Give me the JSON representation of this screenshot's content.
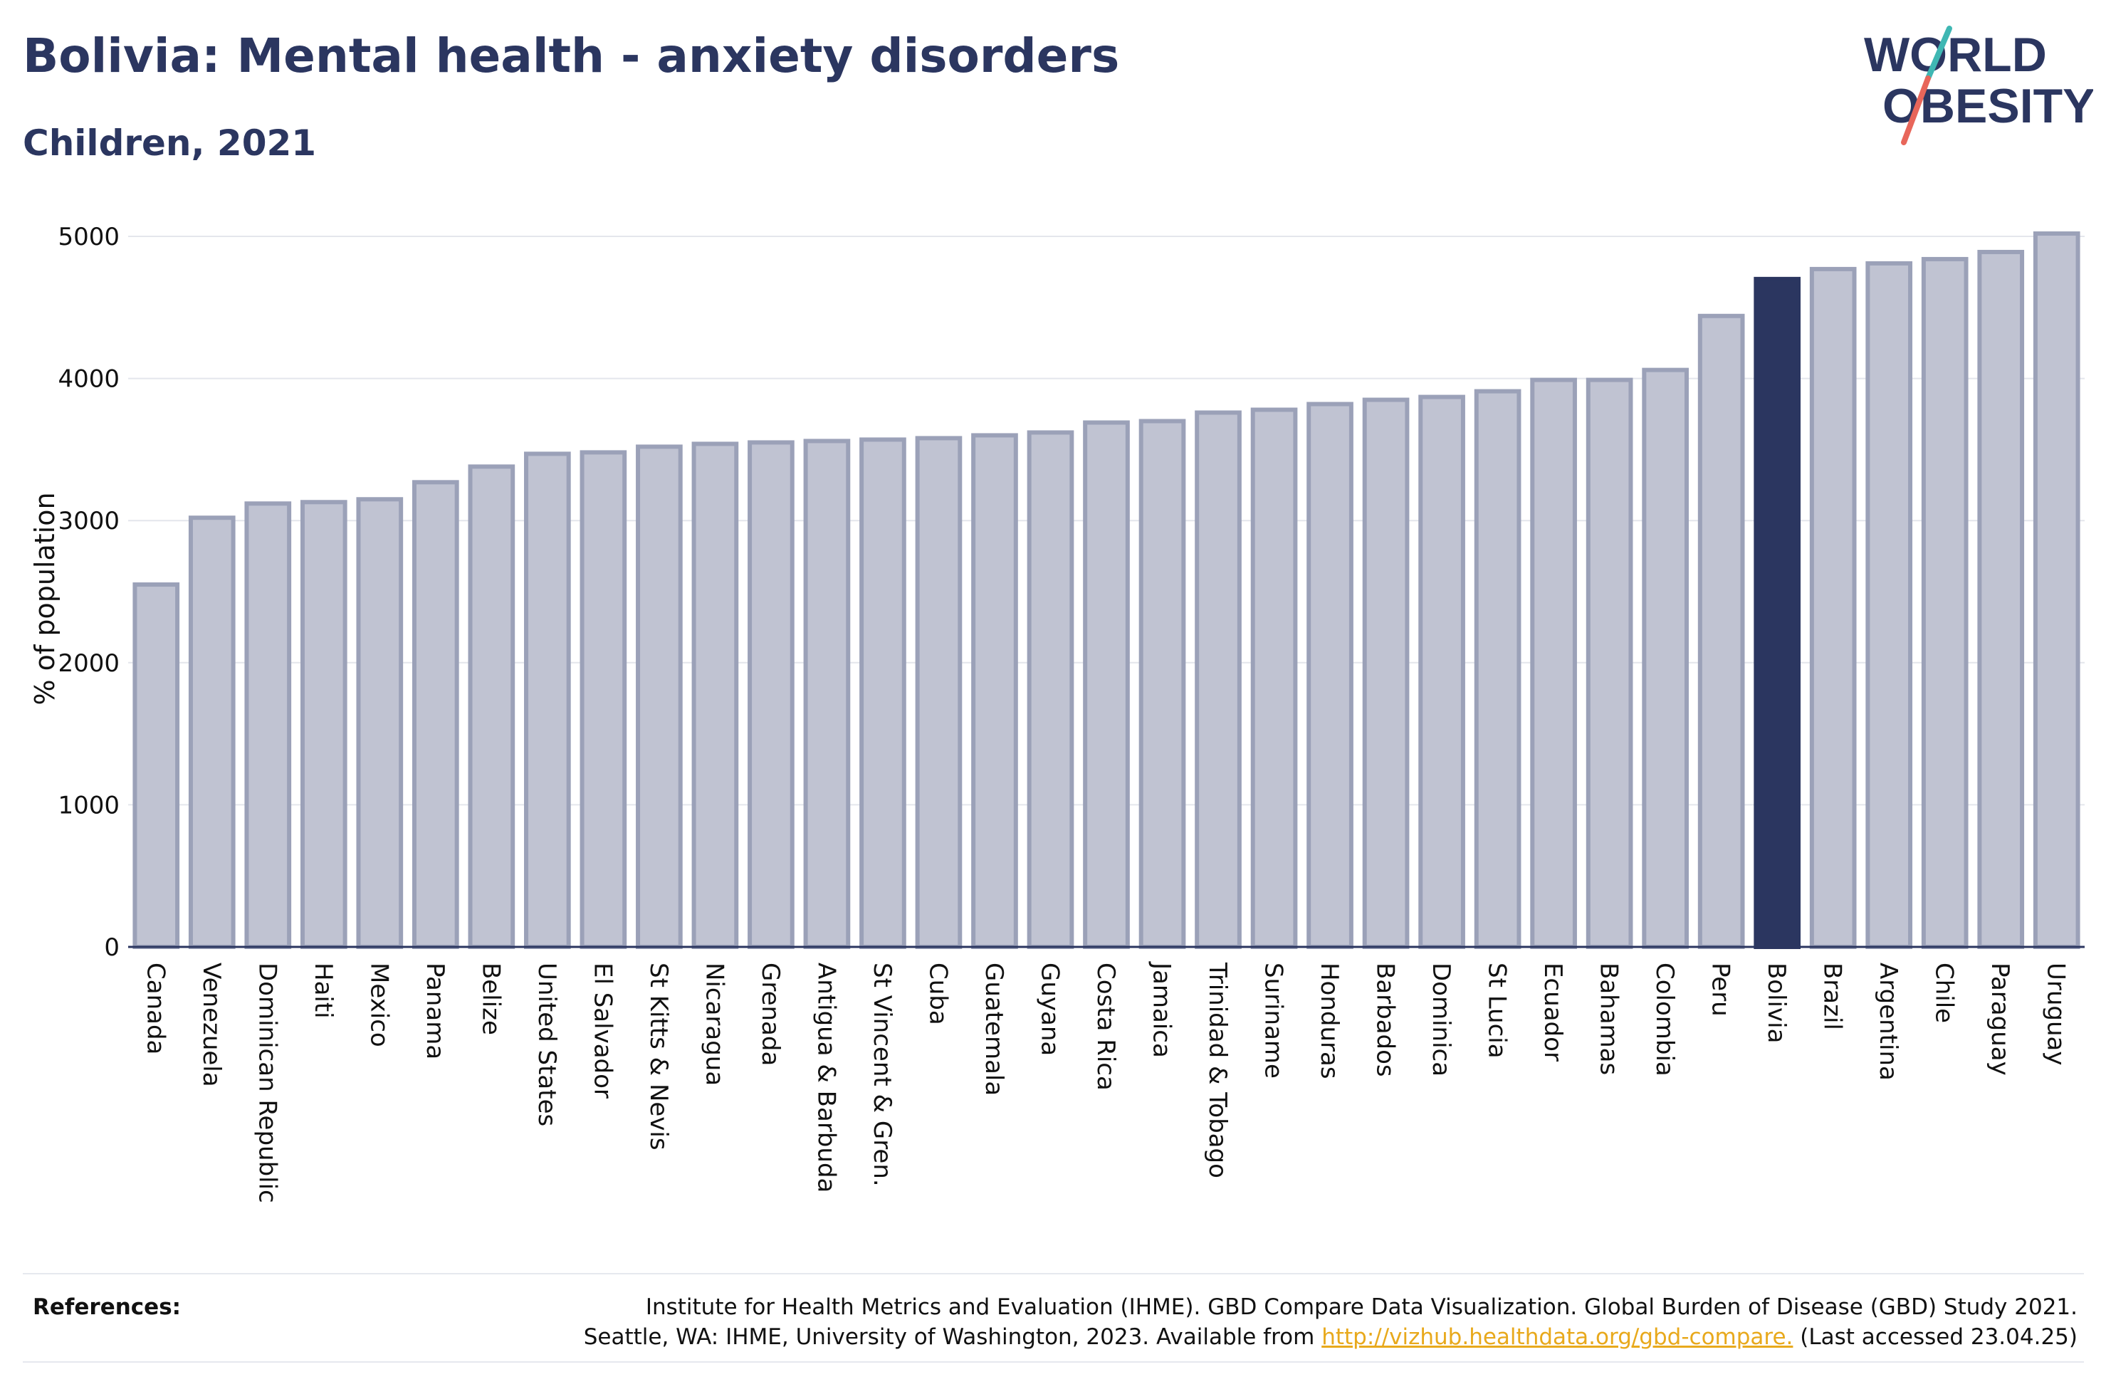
{
  "header": {
    "title": "Bolivia: Mental health - anxiety disorders",
    "subtitle": "Children, 2021"
  },
  "logo": {
    "line1": "WORLD",
    "line2": "OBESITY",
    "text_color": "#2b3660",
    "slash_colors": [
      "#3fb7b3",
      "#e8665a"
    ]
  },
  "chart_data": {
    "type": "bar",
    "ylabel": "% of population",
    "xlabel": "",
    "ylim": [
      0,
      5000
    ],
    "yticks": [
      0,
      1000,
      2000,
      3000,
      4000,
      5000
    ],
    "grid": true,
    "highlight": "Bolivia",
    "colors": {
      "default_fill": "#c0c3d2",
      "default_stroke": "#9ba1b8",
      "highlight_fill": "#2b3660"
    },
    "categories": [
      "Canada",
      "Venezuela",
      "Dominican Republic",
      "Haiti",
      "Mexico",
      "Panama",
      "Belize",
      "United States",
      "El Salvador",
      "St Kitts & Nevis",
      "Nicaragua",
      "Grenada",
      "Antigua & Barbuda",
      "St Vincent & Gren.",
      "Cuba",
      "Guatemala",
      "Guyana",
      "Costa Rica",
      "Jamaica",
      "Trinidad & Tobago",
      "Suriname",
      "Honduras",
      "Barbados",
      "Dominica",
      "St Lucia",
      "Ecuador",
      "Bahamas",
      "Colombia",
      "Peru",
      "Bolivia",
      "Brazil",
      "Argentina",
      "Chile",
      "Paraguay",
      "Uruguay"
    ],
    "values": [
      2550,
      3020,
      3120,
      3130,
      3150,
      3270,
      3380,
      3470,
      3480,
      3520,
      3540,
      3550,
      3560,
      3570,
      3580,
      3600,
      3620,
      3690,
      3700,
      3760,
      3780,
      3820,
      3850,
      3870,
      3910,
      3990,
      3990,
      4060,
      4440,
      4700,
      4770,
      4810,
      4840,
      4890,
      5020
    ]
  },
  "footer": {
    "references_label": "References:",
    "reference_line1": "Institute for Health Metrics and Evaluation (IHME). GBD Compare Data Visualization. Global Burden of Disease (GBD) Study 2021.",
    "reference_line2_prefix": "Seattle, WA: IHME, University of Washington, 2023. Available from ",
    "reference_link": "http://vizhub.healthdata.org/gbd-compare.",
    "reference_line2_suffix": " (Last accessed 23.04.25)"
  }
}
